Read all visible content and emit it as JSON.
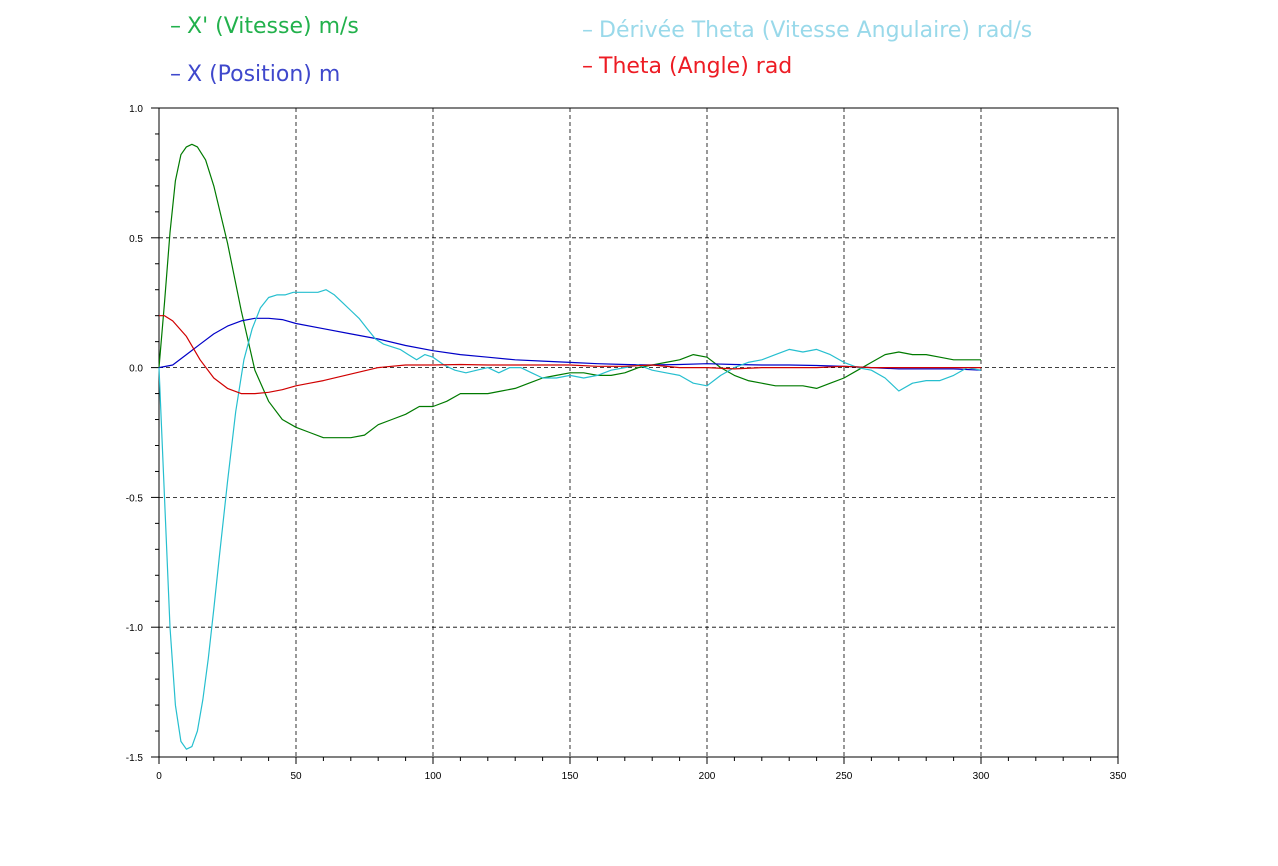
{
  "legend": [
    {
      "name": "X' (Vitesse)  m/s",
      "color": "#22b14c"
    },
    {
      "name": "X (Position) m",
      "color": "#3f48cc"
    },
    {
      "name": "Dérivée Theta (Vitesse Angulaire) rad/s",
      "color": "#99d9ea"
    },
    {
      "name": "Theta (Angle) rad",
      "color": "#ed1c24"
    }
  ],
  "chart_data": {
    "type": "line",
    "xlim": [
      0,
      350
    ],
    "ylim": [
      -1.5,
      1.0
    ],
    "xticks": [
      0,
      50,
      100,
      150,
      200,
      250,
      300,
      350
    ],
    "yticks": [
      -1.5,
      -1.0,
      -0.5,
      0.0,
      0.5,
      1.0
    ],
    "xtick_labels": [
      "0",
      "50",
      "100",
      "150",
      "200",
      "250",
      "300",
      "350"
    ],
    "ytick_labels": [
      "-1.5",
      "-1.0",
      "-0.5",
      "0.0",
      "0.5",
      "1.0"
    ],
    "grid": true,
    "legend_position": "top",
    "series": [
      {
        "name": "X' (Vitesse)  m/s",
        "color": "#007a00",
        "x": [
          0,
          2,
          4,
          6,
          8,
          10,
          12,
          14,
          17,
          20,
          25,
          30,
          35,
          40,
          45,
          50,
          55,
          60,
          65,
          70,
          75,
          80,
          85,
          90,
          95,
          100,
          105,
          110,
          115,
          120,
          125,
          130,
          135,
          140,
          145,
          150,
          155,
          160,
          165,
          170,
          175,
          180,
          185,
          190,
          195,
          200,
          205,
          210,
          215,
          220,
          225,
          230,
          235,
          240,
          245,
          250,
          255,
          260,
          265,
          270,
          275,
          280,
          285,
          290,
          295,
          300
        ],
        "y": [
          0.0,
          0.25,
          0.52,
          0.72,
          0.82,
          0.85,
          0.86,
          0.85,
          0.8,
          0.7,
          0.48,
          0.22,
          -0.01,
          -0.13,
          -0.2,
          -0.23,
          -0.25,
          -0.27,
          -0.27,
          -0.27,
          -0.26,
          -0.22,
          -0.2,
          -0.18,
          -0.15,
          -0.15,
          -0.13,
          -0.1,
          -0.1,
          -0.1,
          -0.09,
          -0.08,
          -0.06,
          -0.04,
          -0.03,
          -0.02,
          -0.02,
          -0.03,
          -0.03,
          -0.02,
          0.0,
          0.01,
          0.02,
          0.03,
          0.05,
          0.04,
          0.0,
          -0.03,
          -0.05,
          -0.06,
          -0.07,
          -0.07,
          -0.07,
          -0.08,
          -0.06,
          -0.04,
          -0.01,
          0.02,
          0.05,
          0.06,
          0.05,
          0.05,
          0.04,
          0.03,
          0.03,
          0.03
        ]
      },
      {
        "name": "X (Position) m",
        "color": "#0000c8",
        "x": [
          0,
          5,
          10,
          15,
          20,
          25,
          30,
          35,
          40,
          45,
          50,
          60,
          70,
          80,
          90,
          100,
          110,
          120,
          130,
          140,
          150,
          160,
          170,
          180,
          190,
          200,
          210,
          220,
          230,
          240,
          250,
          260,
          270,
          280,
          290,
          300
        ],
        "y": [
          0.0,
          0.01,
          0.05,
          0.09,
          0.13,
          0.16,
          0.18,
          0.19,
          0.19,
          0.185,
          0.17,
          0.15,
          0.13,
          0.11,
          0.085,
          0.065,
          0.05,
          0.04,
          0.03,
          0.025,
          0.02,
          0.015,
          0.012,
          0.01,
          0.012,
          0.015,
          0.012,
          0.01,
          0.01,
          0.008,
          0.005,
          0.0,
          -0.005,
          -0.005,
          -0.005,
          -0.01
        ]
      },
      {
        "name": "Dérivée Theta (Vitesse Angulaire) rad/s",
        "color": "#26bfcf",
        "x": [
          0,
          2,
          4,
          6,
          8,
          10,
          12,
          14,
          16,
          18,
          20,
          22,
          25,
          28,
          31,
          34,
          37,
          40,
          43,
          46,
          49,
          52,
          55,
          58,
          61,
          64,
          67,
          70,
          73,
          76,
          79,
          82,
          85,
          88,
          91,
          94,
          97,
          100,
          104,
          108,
          112,
          116,
          120,
          124,
          128,
          132,
          136,
          140,
          145,
          150,
          155,
          160,
          165,
          170,
          175,
          180,
          185,
          190,
          195,
          200,
          205,
          210,
          215,
          220,
          225,
          230,
          235,
          240,
          245,
          250,
          255,
          260,
          265,
          270,
          275,
          280,
          285,
          290,
          295,
          300
        ],
        "y": [
          0.0,
          -0.5,
          -1.0,
          -1.3,
          -1.44,
          -1.47,
          -1.46,
          -1.4,
          -1.28,
          -1.12,
          -0.93,
          -0.73,
          -0.44,
          -0.17,
          0.03,
          0.15,
          0.23,
          0.27,
          0.28,
          0.28,
          0.29,
          0.29,
          0.29,
          0.29,
          0.3,
          0.28,
          0.25,
          0.22,
          0.19,
          0.15,
          0.11,
          0.09,
          0.08,
          0.07,
          0.05,
          0.03,
          0.05,
          0.04,
          0.01,
          -0.01,
          -0.02,
          -0.01,
          0.0,
          -0.02,
          0.0,
          0.0,
          -0.02,
          -0.04,
          -0.04,
          -0.03,
          -0.04,
          -0.03,
          -0.01,
          0.0,
          0.01,
          -0.01,
          -0.02,
          -0.03,
          -0.06,
          -0.07,
          -0.03,
          0.0,
          0.02,
          0.03,
          0.05,
          0.07,
          0.06,
          0.07,
          0.05,
          0.02,
          0.0,
          -0.01,
          -0.04,
          -0.09,
          -0.06,
          -0.05,
          -0.05,
          -0.03,
          0.0,
          -0.01
        ]
      },
      {
        "name": "Theta (Angle) rad",
        "color": "#d00000",
        "x": [
          0,
          2,
          5,
          10,
          15,
          20,
          25,
          30,
          35,
          40,
          45,
          50,
          55,
          60,
          70,
          80,
          90,
          100,
          110,
          120,
          130,
          140,
          150,
          160,
          170,
          180,
          190,
          200,
          210,
          220,
          230,
          240,
          250,
          260,
          270,
          280,
          290,
          300
        ],
        "y": [
          0.2,
          0.2,
          0.18,
          0.12,
          0.03,
          -0.04,
          -0.08,
          -0.1,
          -0.1,
          -0.095,
          -0.085,
          -0.07,
          -0.06,
          -0.05,
          -0.025,
          0.0,
          0.01,
          0.01,
          0.012,
          0.01,
          0.01,
          0.01,
          0.01,
          0.005,
          0.005,
          0.01,
          0.0,
          0.0,
          -0.005,
          0.0,
          0.0,
          0.0,
          0.005,
          0.0,
          0.0,
          0.0,
          0.0,
          0.0
        ]
      }
    ]
  }
}
